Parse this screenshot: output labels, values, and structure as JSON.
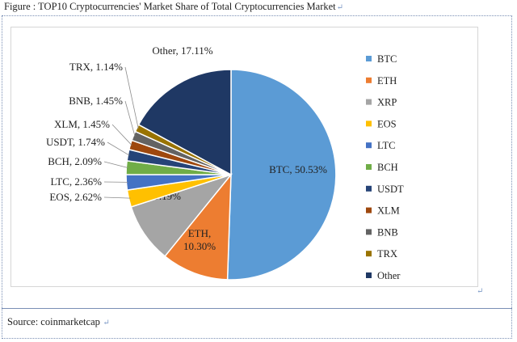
{
  "figure": {
    "title": "Figure : TOP10 Cryptocurrencies' Market Share of Total Cryptocurrencies Market",
    "source": "Source: coinmarketcap"
  },
  "colors": {
    "frame_border": "#7a8fb5",
    "return_mark": "#7f9cc8"
  },
  "chart_data": {
    "type": "pie",
    "title": "",
    "categories": [
      "BTC",
      "ETH",
      "XRP",
      "EOS",
      "LTC",
      "BCH",
      "USDT",
      "XLM",
      "BNB",
      "TRX",
      "Other"
    ],
    "values": [
      50.53,
      10.3,
      9.19,
      2.62,
      2.36,
      2.09,
      1.74,
      1.45,
      1.45,
      1.14,
      17.11
    ],
    "unit": "%",
    "data_labels": [
      "BTC, 50.53%",
      "ETH, 10.30%",
      "XRP, 9.19%",
      "EOS, 2.62%",
      "LTC, 2.36%",
      "BCH, 2.09%",
      "USDT, 1.74%",
      "XLM, 1.45%",
      "BNB, 1.45%",
      "TRX, 1.14%",
      "Other, 17.11%"
    ],
    "colors": [
      "#5b9bd5",
      "#ed7d31",
      "#a5a5a5",
      "#ffc000",
      "#4472c4",
      "#70ad47",
      "#264478",
      "#9e480e",
      "#636363",
      "#997300",
      "#1f3864"
    ],
    "legend": "right",
    "start_angle": "12 o'clock",
    "direction": "clockwise"
  }
}
